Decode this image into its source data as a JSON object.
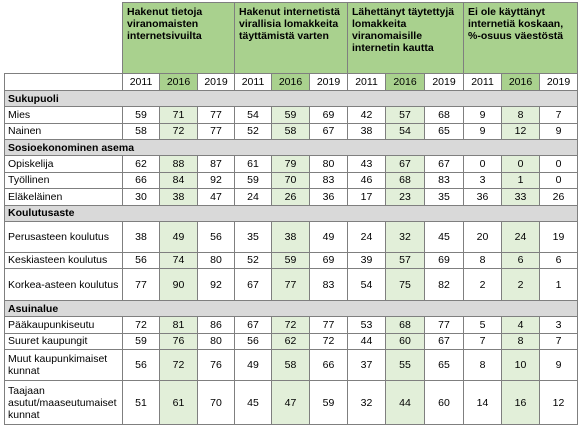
{
  "table": {
    "groups": [
      "Hakenut tietoja viranomaisten internetsivuilta",
      "Hakenut internetistä virallisia lomakkeita täyttämistä varten",
      "Lähettänyt täytettyjä lomakkeita viranomaisille internetin kautta",
      "Ei ole käyttänyt internetiä koskaan, %-osuus väestöstä"
    ],
    "years": [
      "2011",
      "2016",
      "2019"
    ],
    "sections": [
      {
        "title": "Sukupuoli",
        "rows": [
          {
            "label": "Mies",
            "values": [
              59,
              71,
              77,
              54,
              59,
              69,
              42,
              57,
              68,
              9,
              8,
              7
            ]
          },
          {
            "label": "Nainen",
            "values": [
              58,
              72,
              77,
              52,
              58,
              67,
              38,
              54,
              65,
              9,
              12,
              9
            ]
          }
        ]
      },
      {
        "title": "Sosioekonominen asema",
        "rows": [
          {
            "label": "Opiskelija",
            "values": [
              62,
              88,
              87,
              61,
              79,
              80,
              43,
              67,
              67,
              0,
              0,
              0
            ]
          },
          {
            "label": "Työllinen",
            "values": [
              66,
              84,
              92,
              59,
              70,
              83,
              46,
              68,
              83,
              3,
              1,
              0
            ]
          },
          {
            "label": "Eläkeläinen",
            "values": [
              30,
              38,
              47,
              24,
              26,
              36,
              17,
              23,
              35,
              36,
              33,
              26
            ]
          }
        ]
      },
      {
        "title": "Koulutusaste",
        "rows": [
          {
            "label": "Perusasteen koulutus",
            "values": [
              38,
              49,
              56,
              35,
              38,
              49,
              24,
              32,
              45,
              20,
              24,
              19
            ]
          },
          {
            "label": "Keskiasteen koulutus",
            "values": [
              56,
              74,
              80,
              52,
              59,
              69,
              39,
              57,
              69,
              8,
              6,
              6
            ]
          },
          {
            "label": "Korkea-asteen koulutus",
            "values": [
              77,
              90,
              92,
              67,
              77,
              83,
              54,
              75,
              82,
              2,
              2,
              1
            ]
          }
        ]
      },
      {
        "title": "Asuinalue",
        "rows": [
          {
            "label": "Pääkaupunkiseutu",
            "values": [
              72,
              81,
              86,
              67,
              72,
              77,
              53,
              68,
              77,
              5,
              4,
              3
            ]
          },
          {
            "label": "Suuret kaupungit",
            "values": [
              59,
              76,
              80,
              56,
              62,
              72,
              44,
              60,
              67,
              7,
              8,
              7
            ]
          },
          {
            "label": "Muut kaupunkimaiset kunnat",
            "values": [
              56,
              72,
              76,
              49,
              58,
              66,
              37,
              55,
              65,
              8,
              10,
              9
            ]
          },
          {
            "label": "Taajaan asutut/maaseutumaiset kunnat",
            "values": [
              51,
              61,
              70,
              45,
              47,
              59,
              32,
              44,
              60,
              14,
              16,
              12
            ]
          }
        ]
      }
    ]
  }
}
